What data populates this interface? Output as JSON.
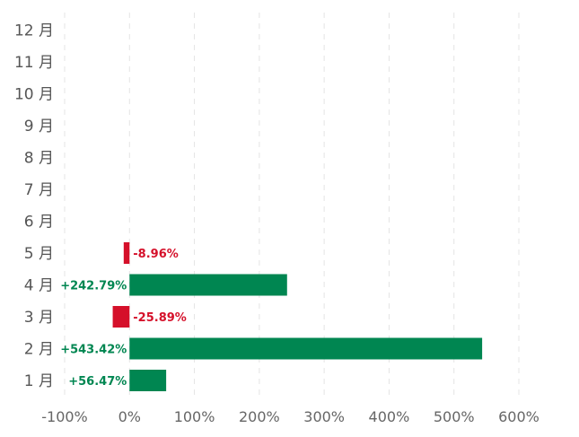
{
  "chart_data": {
    "type": "bar",
    "orientation": "horizontal",
    "categories": [
      "1 月",
      "2 月",
      "3 月",
      "4 月",
      "5 月",
      "6 月",
      "7 月",
      "8 月",
      "9 月",
      "10 月",
      "11 月",
      "12 月"
    ],
    "values": [
      56.47,
      543.42,
      -25.89,
      242.79,
      -8.96,
      null,
      null,
      null,
      null,
      null,
      null,
      null
    ],
    "value_labels": [
      "+56.47%",
      "+543.42%",
      "-25.89%",
      "+242.79%",
      "-8.96%",
      "",
      "",
      "",
      "",
      "",
      "",
      ""
    ],
    "x_ticks": [
      "-100%",
      "0%",
      "100%",
      "200%",
      "300%",
      "400%",
      "500%",
      "600%"
    ],
    "xlim": [
      -100,
      600
    ],
    "unit": "%",
    "grid": "vertical dashed",
    "colors": {
      "positive": "#008651",
      "negative": "#d5102a",
      "grid": "#e4e4e4",
      "text": "#555555"
    }
  }
}
